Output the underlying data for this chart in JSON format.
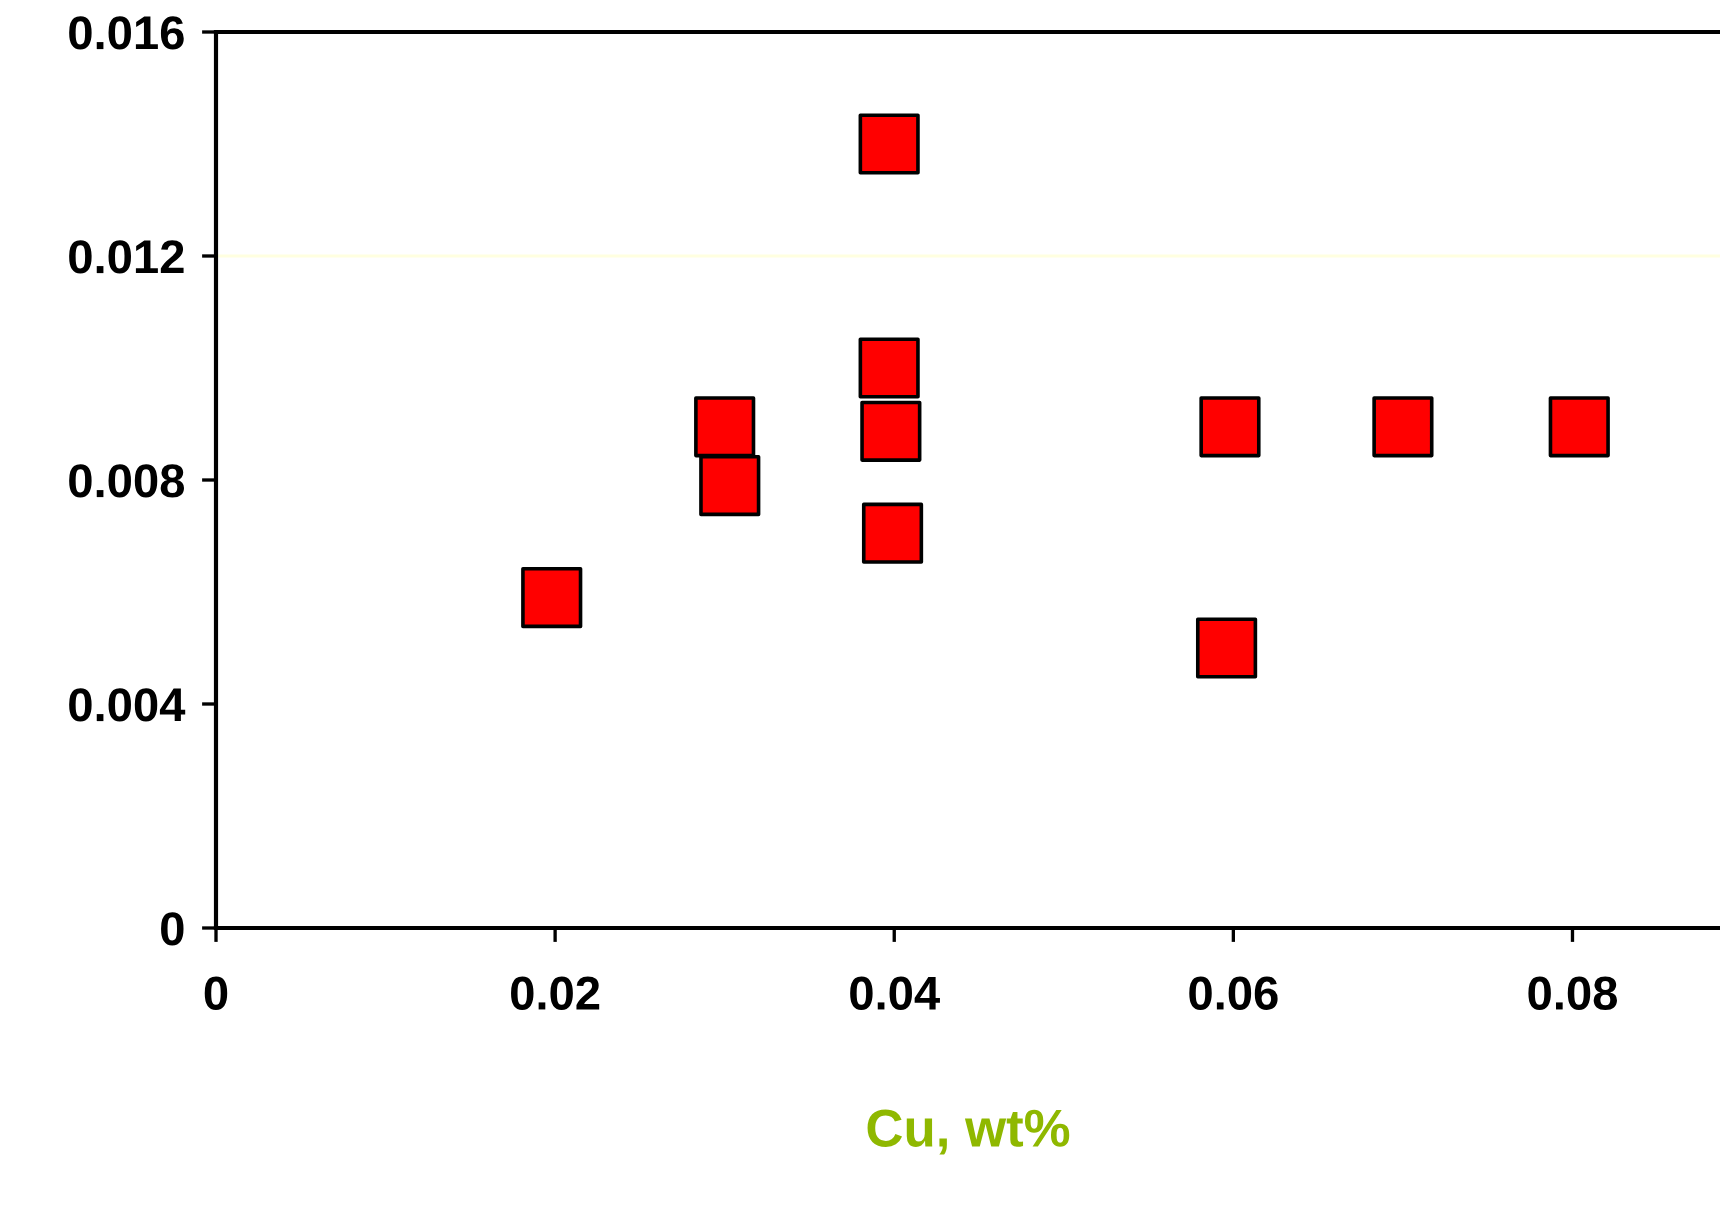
{
  "chart_data": {
    "type": "scatter",
    "xlabel": "Cu, wt%",
    "x": [
      0.0198,
      0.03,
      0.0303,
      0.0397,
      0.0397,
      0.0398,
      0.0399,
      0.0598,
      0.0596,
      0.07,
      0.0804
    ],
    "values": [
      0.0059,
      0.00895,
      0.0079,
      0.014,
      0.01,
      0.00887,
      0.00705,
      0.00895,
      0.005,
      0.00895,
      0.00895
    ],
    "color": "#ff0000",
    "marker": "square",
    "xlim": [
      0,
      0.0887
    ],
    "xticks": [
      0,
      0.02,
      0.04,
      0.06,
      0.08
    ],
    "ylim": [
      0,
      0.016
    ],
    "yticks": [
      0,
      0.004,
      0.008,
      0.012,
      0.016
    ],
    "ref_lines": [
      {
        "axis": "y",
        "value": 0.012,
        "color": "#ffffe0"
      }
    ],
    "grid": false,
    "legend": false
  }
}
